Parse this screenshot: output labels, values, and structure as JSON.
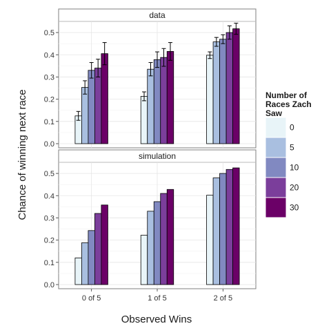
{
  "chart_data": {
    "type": "bar",
    "categories": [
      "0 of 5",
      "1 of 5",
      "2 of 5"
    ],
    "xlabel": "Observed Wins",
    "ylabel": "Chance of winning next race",
    "ylim": [
      0,
      0.55
    ],
    "yticks": [
      "0.0",
      "0.1",
      "0.2",
      "0.3",
      "0.4",
      "0.5"
    ],
    "grid": true,
    "legend": {
      "title": [
        "Number of",
        "Races Zach",
        "Saw"
      ],
      "position": "right",
      "entries": [
        "0",
        "5",
        "10",
        "20",
        "30"
      ]
    },
    "series_colors": [
      "#e8f4f8",
      "#a9bfe0",
      "#8189c1",
      "#7b3e9b",
      "#6b0067"
    ],
    "panels": [
      {
        "title": "data",
        "series": [
          {
            "name": "0",
            "values": [
              0.125,
              0.213,
              0.398
            ],
            "error": [
              0.02,
              0.02,
              0.015
            ]
          },
          {
            "name": "5",
            "values": [
              0.253,
              0.335,
              0.458
            ],
            "error": [
              0.03,
              0.03,
              0.02
            ]
          },
          {
            "name": "10",
            "values": [
              0.33,
              0.378,
              0.47
            ],
            "error": [
              0.035,
              0.035,
              0.02
            ]
          },
          {
            "name": "20",
            "values": [
              0.34,
              0.388,
              0.5
            ],
            "error": [
              0.04,
              0.04,
              0.03
            ]
          },
          {
            "name": "30",
            "values": [
              0.405,
              0.415,
              0.517
            ],
            "error": [
              0.05,
              0.04,
              0.025
            ]
          }
        ]
      },
      {
        "title": "simulation",
        "series": [
          {
            "name": "0",
            "values": [
              0.12,
              0.222,
              0.402
            ]
          },
          {
            "name": "5",
            "values": [
              0.188,
              0.33,
              0.48
            ]
          },
          {
            "name": "10",
            "values": [
              0.243,
              0.373,
              0.5
            ]
          },
          {
            "name": "20",
            "values": [
              0.32,
              0.41,
              0.518
            ]
          },
          {
            "name": "30",
            "values": [
              0.358,
              0.428,
              0.525
            ]
          }
        ]
      }
    ]
  }
}
